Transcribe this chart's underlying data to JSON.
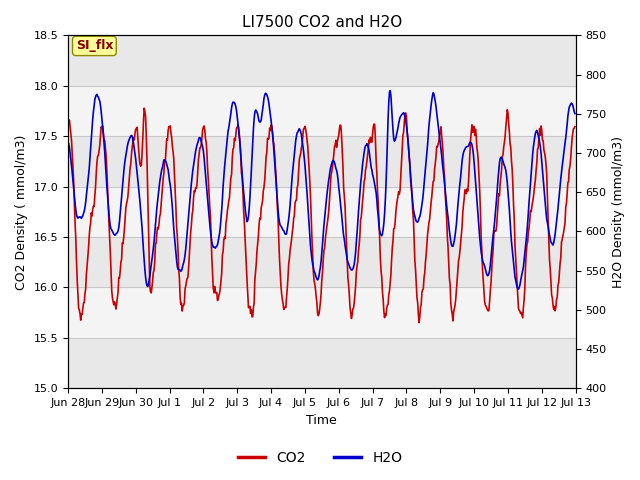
{
  "title": "LI7500 CO2 and H2O",
  "xlabel": "Time",
  "ylabel_left": "CO2 Density ( mmol/m3)",
  "ylabel_right": "H2O Density (mmol/m3)",
  "co2_ylim": [
    15.0,
    18.5
  ],
  "h2o_ylim": [
    400,
    850
  ],
  "co2_color": "#CC0000",
  "h2o_color": "#0000CC",
  "co2_linewidth": 1.2,
  "h2o_linewidth": 1.2,
  "annotation_text": "SI_flx",
  "annotation_bg": "#FFFF99",
  "annotation_border": "#888800",
  "bg_color": "#FFFFFF",
  "plot_bg": "#FFFFFF",
  "title_fontsize": 11,
  "label_fontsize": 9,
  "tick_fontsize": 8,
  "legend_fontsize": 10,
  "x_tick_labels": [
    "Jun 28",
    "Jun 29",
    "Jun 30",
    "Jul 1",
    "Jul 2",
    "Jul 3",
    "Jul 4",
    "Jul 5",
    "Jul 6",
    "Jul 7",
    "Jul 8",
    "Jul 9",
    "Jul 10",
    "Jul 11",
    "Jul 12",
    "Jul 13"
  ],
  "n_points": 720,
  "seed": 42
}
